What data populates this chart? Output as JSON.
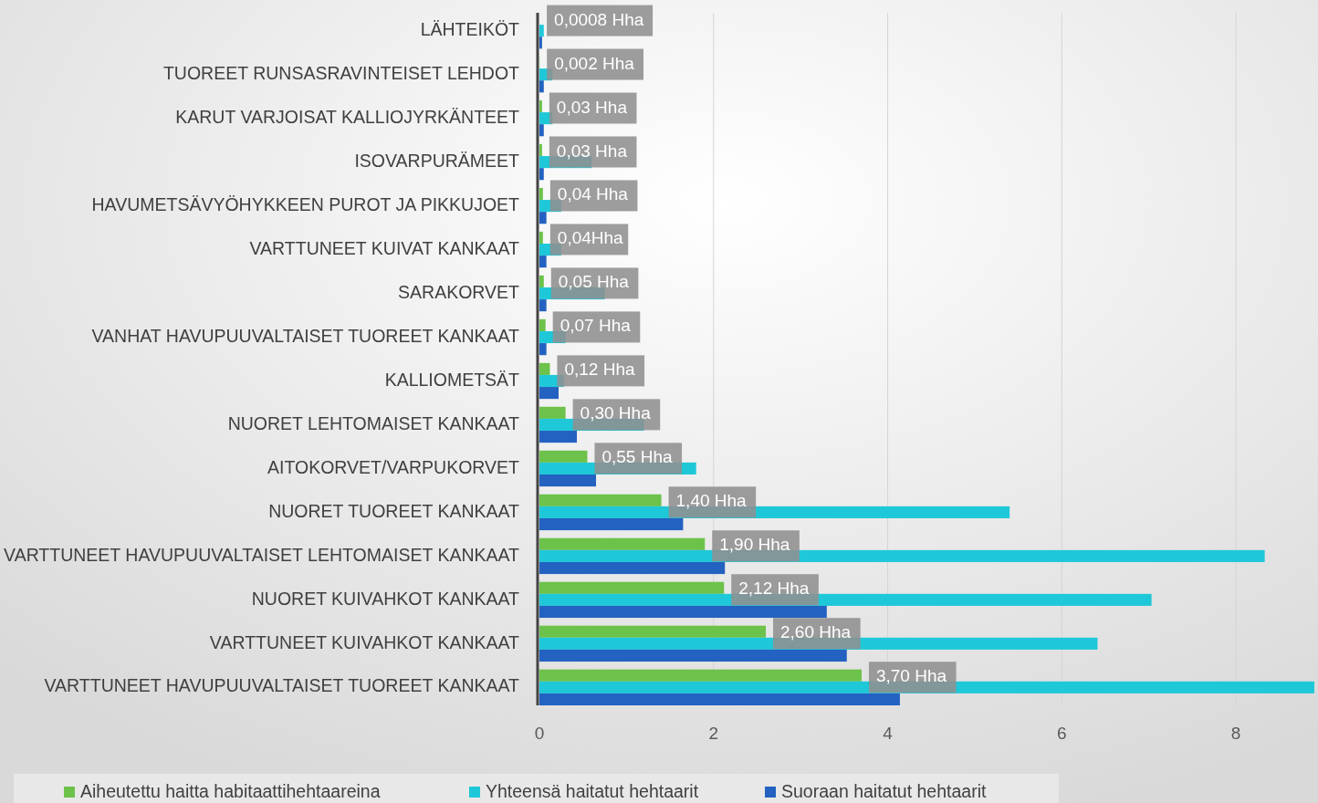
{
  "chart_data": {
    "type": "bar",
    "orientation": "horizontal",
    "categories": [
      "LÄHTEIKÖT",
      "TUOREET RUNSASRAVINTEISET LEHDOT",
      "KARUT VARJOISAT KALLIOJYRKÄNTEET",
      "ISOVARPURÄMEET",
      "HAVUMETSÄVYÖHYKKEEN PUROT JA PIKKUJOET",
      "VARTTUNEET KUIVAT KANKAAT",
      "SARAKORVET",
      "VANHAT HAVUPUUVALTAISET TUOREET KANKAAT",
      "KALLIOMETSÄT",
      "NUORET LEHTOMAISET KANKAAT",
      "AITOKORVET/VARPUKORVET",
      "NUORET TUOREET KANKAAT",
      "VARTTUNEET HAVUPUUVALTAISET LEHTOMAISET KANKAAT",
      "NUORET KUIVAHKOT KANKAAT",
      "VARTTUNEET KUIVAHKOT KANKAAT",
      "VARTTUNEET HAVUPUUVALTAISET TUOREET KANKAAT"
    ],
    "series": [
      {
        "name": "Aiheutettu haitta habitaattihehtaareina",
        "color": "#6cc24a",
        "values": [
          0.0008,
          0.002,
          0.03,
          0.03,
          0.04,
          0.04,
          0.05,
          0.07,
          0.12,
          0.3,
          0.55,
          1.4,
          1.9,
          2.12,
          2.6,
          3.7
        ],
        "value_labels": [
          "0,0008 Hha",
          "0,002 Hha",
          "0,03 Hha",
          "0,03 Hha",
          "0,04 Hha",
          "0,04Hha",
          "0,05 Hha",
          "0,07 Hha",
          "0,12 Hha",
          "0,30 Hha",
          "0,55 Hha",
          "1,40 Hha",
          "1,90 Hha",
          "2,12 Hha",
          "2,60 Hha",
          "3,70 Hha"
        ]
      },
      {
        "name": "Yhteensä haitatut hehtaarit",
        "color": "#1fc8d8",
        "values": [
          0.05,
          0.15,
          0.15,
          0.6,
          0.25,
          0.25,
          0.75,
          0.3,
          0.28,
          1.2,
          1.8,
          5.4,
          8.33,
          7.03,
          6.41,
          8.9
        ]
      },
      {
        "name": "Suoraan haitatut hehtaarit",
        "color": "#2362c0",
        "values": [
          0.03,
          0.05,
          0.05,
          0.05,
          0.08,
          0.08,
          0.08,
          0.08,
          0.22,
          0.43,
          0.65,
          1.65,
          2.13,
          3.3,
          3.53,
          4.14
        ]
      }
    ],
    "xlim": [
      0,
      8.9
    ],
    "xticks": [
      0,
      2,
      4,
      6,
      8
    ],
    "grid": "x",
    "legend": "bottom left"
  }
}
